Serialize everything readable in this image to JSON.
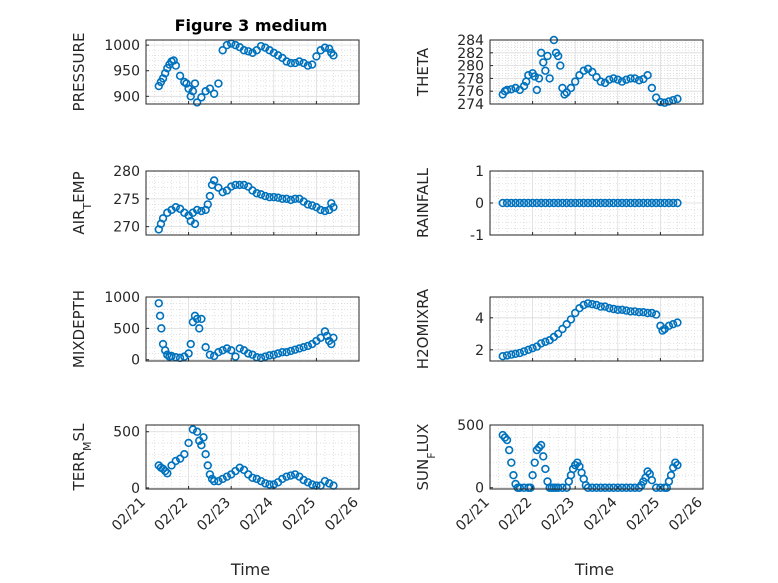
{
  "figure": {
    "title": "Figure 3 medium",
    "xlabel": "Time",
    "xticks": [
      "02/21",
      "02/22",
      "02/23",
      "02/24",
      "02/25",
      "02/26"
    ],
    "marker_color": "#0072BD"
  },
  "chart_data": [
    {
      "type": "scatter",
      "ylabel": "PRESSURE",
      "ylabel_parts": [
        [
          "PRESSURE",
          ""
        ]
      ],
      "ylim": [
        885,
        1010
      ],
      "yticks": [
        900,
        950,
        1000
      ],
      "xlim": [
        21,
        26
      ],
      "grid": true,
      "x": [
        21.3,
        21.35,
        21.4,
        21.45,
        21.5,
        21.55,
        21.6,
        21.65,
        21.7,
        21.8,
        21.9,
        21.95,
        22.0,
        22.05,
        22.1,
        22.15,
        22.2,
        22.3,
        22.4,
        22.5,
        22.6,
        22.7,
        22.8,
        22.9,
        23.0,
        23.1,
        23.2,
        23.3,
        23.4,
        23.5,
        23.6,
        23.7,
        23.8,
        23.9,
        24.0,
        24.1,
        24.2,
        24.3,
        24.4,
        24.5,
        24.6,
        24.7,
        24.8,
        24.9,
        25.0,
        25.1,
        25.2,
        25.3,
        25.35,
        25.4
      ],
      "y": [
        920,
        928,
        935,
        945,
        955,
        962,
        968,
        970,
        960,
        940,
        928,
        925,
        915,
        900,
        910,
        925,
        888,
        898,
        910,
        915,
        905,
        925,
        990,
        1000,
        1003,
        1000,
        996,
        990,
        988,
        985,
        990,
        998,
        995,
        990,
        985,
        980,
        975,
        968,
        965,
        965,
        968,
        965,
        960,
        962,
        978,
        990,
        995,
        993,
        985,
        980
      ]
    },
    {
      "type": "scatter",
      "ylabel": "THETA",
      "ylabel_parts": [
        [
          "THETA",
          ""
        ]
      ],
      "ylim": [
        274,
        284
      ],
      "yticks": [
        274,
        276,
        278,
        280,
        282,
        284
      ],
      "xlim": [
        21,
        26
      ],
      "grid": true,
      "x": [
        21.3,
        21.35,
        21.4,
        21.5,
        21.6,
        21.7,
        21.8,
        21.85,
        21.9,
        22.0,
        22.05,
        22.1,
        22.15,
        22.2,
        22.25,
        22.3,
        22.35,
        22.4,
        22.5,
        22.55,
        22.6,
        22.65,
        22.7,
        22.75,
        22.8,
        22.9,
        23.0,
        23.1,
        23.2,
        23.3,
        23.4,
        23.5,
        23.6,
        23.7,
        23.8,
        23.9,
        24.0,
        24.1,
        24.2,
        24.3,
        24.4,
        24.5,
        24.6,
        24.7,
        24.8,
        24.9,
        25.0,
        25.1,
        25.2,
        25.3,
        25.4
      ],
      "y": [
        275.5,
        276,
        276.2,
        276.3,
        276.5,
        276.2,
        276.8,
        277.5,
        278.5,
        278.8,
        278.3,
        276.2,
        278,
        282,
        280.5,
        279.2,
        281.5,
        278,
        284,
        282,
        281.5,
        280,
        276.5,
        275.5,
        275.8,
        276.5,
        277.5,
        278.5,
        279.2,
        279.5,
        279,
        278.2,
        277.5,
        277.3,
        277.8,
        278,
        277.8,
        277.5,
        277.8,
        278,
        278,
        277.7,
        277.9,
        278.5,
        276.5,
        275,
        274.3,
        274.2,
        274.4,
        274.6,
        274.8
      ]
    },
    {
      "type": "scatter",
      "ylabel": "AIR_TEMP",
      "ylabel_parts": [
        [
          "AIR",
          ""
        ],
        [
          "T",
          "sub"
        ],
        [
          "EMP",
          ""
        ]
      ],
      "ylim": [
        268.5,
        280
      ],
      "yticks": [
        270,
        275,
        280
      ],
      "xlim": [
        21,
        26
      ],
      "grid": true,
      "x": [
        21.3,
        21.35,
        21.4,
        21.5,
        21.6,
        21.7,
        21.8,
        21.9,
        22.0,
        22.05,
        22.1,
        22.15,
        22.2,
        22.3,
        22.4,
        22.45,
        22.5,
        22.55,
        22.6,
        22.7,
        22.8,
        22.9,
        23.0,
        23.1,
        23.2,
        23.3,
        23.4,
        23.5,
        23.6,
        23.7,
        23.8,
        23.9,
        24.0,
        24.1,
        24.2,
        24.3,
        24.4,
        24.5,
        24.6,
        24.7,
        24.8,
        24.9,
        25.0,
        25.1,
        25.2,
        25.3,
        25.35,
        25.4
      ],
      "y": [
        269.5,
        270.5,
        271.5,
        272.5,
        273,
        273.5,
        273.2,
        272.5,
        272,
        271,
        272.5,
        270.5,
        273,
        272.8,
        273,
        274,
        275.5,
        277.5,
        278.3,
        277,
        276.2,
        276.5,
        277.2,
        277.5,
        277.5,
        277.5,
        277.2,
        276.5,
        276,
        275.8,
        275.5,
        275.3,
        275.3,
        275.2,
        275,
        275,
        274.8,
        275,
        275,
        274.5,
        274,
        273.8,
        273.5,
        273,
        272.8,
        273,
        274.2,
        273.5
      ]
    },
    {
      "type": "scatter",
      "ylabel": "RAINFALL",
      "ylabel_parts": [
        [
          "RAINFALL",
          ""
        ]
      ],
      "ylim": [
        -1,
        1
      ],
      "yticks": [
        -1,
        0,
        1
      ],
      "xlim": [
        21,
        26
      ],
      "grid": true,
      "x": [
        21.3,
        21.4,
        21.5,
        21.6,
        21.7,
        21.8,
        21.9,
        22.0,
        22.1,
        22.2,
        22.3,
        22.4,
        22.5,
        22.6,
        22.7,
        22.8,
        22.9,
        23.0,
        23.1,
        23.2,
        23.3,
        23.4,
        23.5,
        23.6,
        23.7,
        23.8,
        23.9,
        24.0,
        24.1,
        24.2,
        24.3,
        24.4,
        24.5,
        24.6,
        24.7,
        24.8,
        24.9,
        25.0,
        25.1,
        25.2,
        25.3,
        25.4
      ],
      "y": [
        0,
        0,
        0,
        0,
        0,
        0,
        0,
        0,
        0,
        0,
        0,
        0,
        0,
        0,
        0,
        0,
        0,
        0,
        0,
        0,
        0,
        0,
        0,
        0,
        0,
        0,
        0,
        0,
        0,
        0,
        0,
        0,
        0,
        0,
        0,
        0,
        0,
        0,
        0,
        0,
        0,
        0
      ]
    },
    {
      "type": "scatter",
      "ylabel": "MIXDEPTH",
      "ylabel_parts": [
        [
          "MIXDEPTH",
          ""
        ]
      ],
      "ylim": [
        -20,
        1000
      ],
      "yticks": [
        0,
        500,
        1000
      ],
      "xlim": [
        21,
        26
      ],
      "grid": true,
      "x": [
        21.3,
        21.33,
        21.36,
        21.4,
        21.45,
        21.5,
        21.55,
        21.6,
        21.7,
        21.8,
        21.9,
        22.0,
        22.05,
        22.1,
        22.15,
        22.2,
        22.25,
        22.3,
        22.4,
        22.5,
        22.6,
        22.7,
        22.8,
        22.9,
        23.0,
        23.1,
        23.2,
        23.3,
        23.4,
        23.5,
        23.6,
        23.7,
        23.8,
        23.9,
        24.0,
        24.1,
        24.2,
        24.3,
        24.4,
        24.5,
        24.6,
        24.7,
        24.8,
        24.9,
        25.0,
        25.1,
        25.2,
        25.25,
        25.3,
        25.35,
        25.4
      ],
      "y": [
        900,
        700,
        500,
        250,
        150,
        80,
        50,
        60,
        40,
        30,
        50,
        100,
        250,
        600,
        700,
        650,
        500,
        650,
        200,
        80,
        60,
        120,
        150,
        180,
        150,
        50,
        180,
        150,
        100,
        80,
        40,
        30,
        50,
        70,
        80,
        100,
        120,
        120,
        140,
        160,
        180,
        200,
        220,
        250,
        300,
        350,
        450,
        380,
        300,
        250,
        350
      ]
    },
    {
      "type": "scatter",
      "ylabel": "H2OMIXRA",
      "ylabel_parts": [
        [
          "H2OMIXRA",
          ""
        ]
      ],
      "ylim": [
        1.3,
        5.3
      ],
      "yticks": [
        2,
        4
      ],
      "xlim": [
        21,
        26
      ],
      "grid": true,
      "x": [
        21.3,
        21.4,
        21.5,
        21.6,
        21.7,
        21.8,
        21.9,
        22.0,
        22.1,
        22.2,
        22.3,
        22.4,
        22.5,
        22.6,
        22.7,
        22.8,
        22.9,
        23.0,
        23.1,
        23.2,
        23.3,
        23.4,
        23.5,
        23.6,
        23.7,
        23.8,
        23.9,
        24.0,
        24.1,
        24.2,
        24.3,
        24.4,
        24.5,
        24.6,
        24.7,
        24.8,
        24.9,
        25.0,
        25.05,
        25.1,
        25.2,
        25.3,
        25.4
      ],
      "y": [
        1.6,
        1.65,
        1.7,
        1.75,
        1.8,
        1.9,
        2.0,
        2.1,
        2.2,
        2.4,
        2.5,
        2.6,
        2.8,
        3.0,
        3.3,
        3.6,
        3.9,
        4.3,
        4.6,
        4.8,
        4.9,
        4.85,
        4.8,
        4.7,
        4.7,
        4.6,
        4.55,
        4.5,
        4.5,
        4.45,
        4.4,
        4.4,
        4.35,
        4.35,
        4.3,
        4.3,
        4.2,
        3.5,
        3.2,
        3.3,
        3.5,
        3.6,
        3.7
      ]
    },
    {
      "type": "scatter",
      "ylabel": "TERR_MSL",
      "ylabel_parts": [
        [
          "TERR",
          ""
        ],
        [
          "M",
          "sub"
        ],
        [
          "SL",
          ""
        ]
      ],
      "ylim": [
        -10,
        560
      ],
      "yticks": [
        0,
        500
      ],
      "xlim": [
        21,
        26
      ],
      "grid": true,
      "x": [
        21.3,
        21.35,
        21.4,
        21.45,
        21.5,
        21.6,
        21.7,
        21.8,
        21.9,
        22.0,
        22.1,
        22.2,
        22.25,
        22.3,
        22.35,
        22.4,
        22.45,
        22.5,
        22.55,
        22.6,
        22.7,
        22.8,
        22.9,
        23.0,
        23.1,
        23.2,
        23.3,
        23.4,
        23.5,
        23.6,
        23.7,
        23.8,
        23.9,
        24.0,
        24.1,
        24.2,
        24.3,
        24.4,
        24.5,
        24.6,
        24.7,
        24.8,
        24.9,
        25.0,
        25.1,
        25.2,
        25.3,
        25.4
      ],
      "y": [
        200,
        180,
        170,
        150,
        130,
        200,
        240,
        260,
        300,
        400,
        520,
        500,
        420,
        380,
        450,
        300,
        200,
        120,
        80,
        60,
        60,
        80,
        100,
        120,
        150,
        180,
        160,
        120,
        90,
        80,
        60,
        40,
        30,
        30,
        50,
        80,
        100,
        110,
        120,
        100,
        70,
        50,
        30,
        20,
        20,
        60,
        40,
        20
      ]
    },
    {
      "type": "scatter",
      "ylabel": "SUN_FLUX",
      "ylabel_parts": [
        [
          "SUN",
          ""
        ],
        [
          "F",
          "sub"
        ],
        [
          "LUX",
          ""
        ]
      ],
      "ylim": [
        -10,
        500
      ],
      "yticks": [
        0,
        500
      ],
      "xlim": [
        21,
        26
      ],
      "grid": true,
      "x": [
        21.3,
        21.35,
        21.4,
        21.45,
        21.5,
        21.55,
        21.6,
        21.65,
        21.7,
        21.8,
        21.9,
        21.95,
        22.0,
        22.05,
        22.1,
        22.15,
        22.2,
        22.25,
        22.3,
        22.35,
        22.4,
        22.45,
        22.5,
        22.55,
        22.6,
        22.7,
        22.8,
        22.85,
        22.9,
        22.95,
        23.0,
        23.05,
        23.1,
        23.15,
        23.2,
        23.25,
        23.3,
        23.4,
        23.5,
        23.6,
        23.7,
        23.8,
        23.9,
        24.0,
        24.1,
        24.2,
        24.3,
        24.4,
        24.5,
        24.55,
        24.6,
        24.65,
        24.7,
        24.75,
        24.8,
        24.9,
        25.0,
        25.1,
        25.15,
        25.2,
        25.25,
        25.3,
        25.35,
        25.4
      ],
      "y": [
        420,
        400,
        380,
        300,
        200,
        100,
        30,
        0,
        0,
        0,
        0,
        0,
        100,
        200,
        300,
        320,
        340,
        250,
        150,
        50,
        0,
        0,
        0,
        0,
        0,
        0,
        0,
        50,
        100,
        150,
        180,
        200,
        170,
        120,
        70,
        20,
        0,
        0,
        0,
        0,
        0,
        0,
        0,
        0,
        0,
        0,
        0,
        0,
        0,
        20,
        50,
        80,
        130,
        110,
        60,
        0,
        0,
        0,
        0,
        50,
        100,
        160,
        200,
        180
      ]
    }
  ]
}
